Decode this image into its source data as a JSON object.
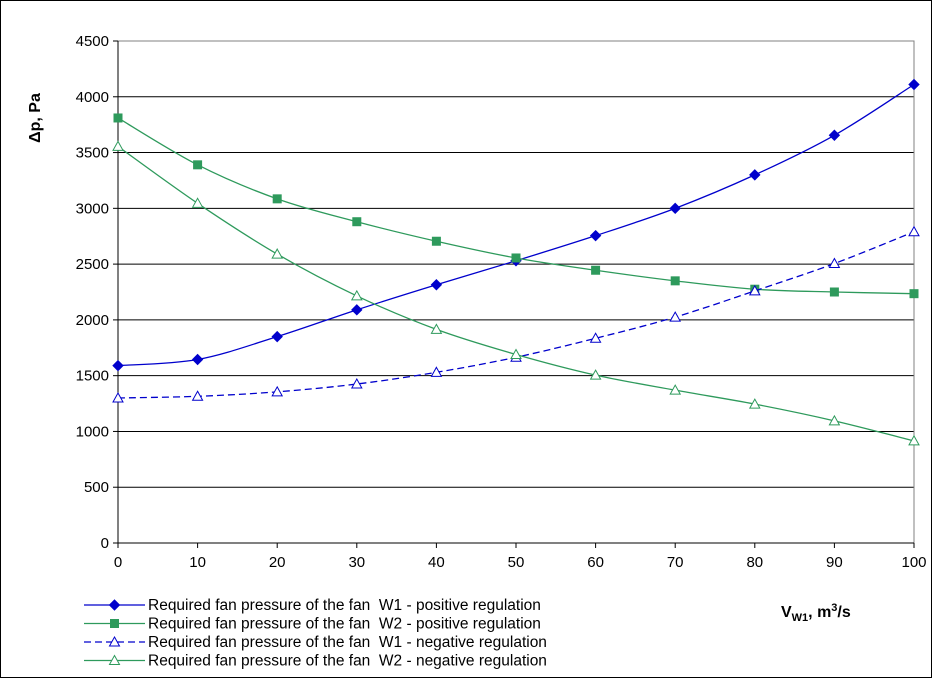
{
  "chart_data": {
    "type": "line",
    "xlabel_main": "V",
    "xlabel_sub": "W1",
    "xlabel_rest": ", m",
    "xlabel_sup": "3",
    "xlabel_end": "/s",
    "ylabel": "Δp, Pa",
    "xlim": [
      0,
      100
    ],
    "ylim": [
      0,
      4500
    ],
    "x_ticks": [
      "0",
      "10",
      "20",
      "30",
      "40",
      "50",
      "60",
      "70",
      "80",
      "90",
      "100"
    ],
    "y_ticks": [
      "0",
      "500",
      "1000",
      "1500",
      "2000",
      "2500",
      "3000",
      "3500",
      "4000",
      "4500"
    ],
    "grid": "horizontal",
    "legend_position": "bottom-left",
    "x": [
      0,
      10,
      20,
      30,
      40,
      50,
      60,
      70,
      80,
      90,
      100
    ],
    "series": [
      {
        "name": "Required fan pressure of the fan  W1 - positive regulation",
        "color": "#0000cc",
        "marker": "diamond",
        "dash": "solid",
        "values": [
          1590,
          1645,
          1850,
          2090,
          2315,
          2530,
          2755,
          3000,
          3300,
          3655,
          4110
        ]
      },
      {
        "name": "Required fan pressure of the fan  W2 - positive regulation",
        "color": "#2e9a5c",
        "marker": "square",
        "dash": "solid",
        "values": [
          3810,
          3390,
          3085,
          2880,
          2705,
          2555,
          2445,
          2350,
          2275,
          2250,
          2235
        ]
      },
      {
        "name": "Required fan pressure of the fan  W1 - negative regulation",
        "color": "#0000cc",
        "marker": "triangle-open",
        "dash": "dashed",
        "values": [
          1300,
          1315,
          1355,
          1425,
          1530,
          1665,
          1835,
          2025,
          2260,
          2505,
          2790
        ]
      },
      {
        "name": "Required fan pressure of the fan  W2 - negative regulation",
        "color": "#2e9a5c",
        "marker": "triangle-open",
        "dash": "solid",
        "values": [
          3555,
          3045,
          2590,
          2215,
          1915,
          1690,
          1505,
          1370,
          1245,
          1095,
          915
        ]
      }
    ]
  }
}
